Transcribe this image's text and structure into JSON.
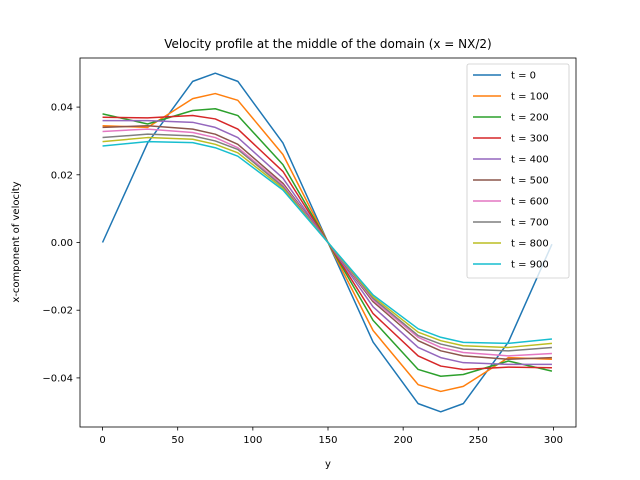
{
  "chart_data": {
    "type": "line",
    "title": "Velocity profile at the middle of the domain (x = NX/2)",
    "xlabel": "y",
    "ylabel": "x-component of velocity",
    "xlim": [
      -15,
      315
    ],
    "ylim": [
      -0.0545,
      0.0545
    ],
    "xticks": [
      0,
      50,
      100,
      150,
      200,
      250,
      300
    ],
    "xtick_labels": [
      "0",
      "50",
      "100",
      "150",
      "200",
      "250",
      "300"
    ],
    "yticks": [
      -0.04,
      -0.02,
      0.0,
      0.02,
      0.04
    ],
    "ytick_labels": [
      "−0.04",
      "−0.02",
      "0.00",
      "0.02",
      "0.04"
    ],
    "grid": false,
    "legend_position": "top-right",
    "x": [
      0,
      30,
      60,
      75,
      90,
      120,
      150,
      180,
      210,
      225,
      240,
      270,
      299
    ],
    "series": [
      {
        "name": "t = 0",
        "color": "#1f77b4",
        "values": [
          0.0,
          0.0294,
          0.0476,
          0.05,
          0.0476,
          0.0294,
          0.0,
          -0.0294,
          -0.0476,
          -0.05,
          -0.0476,
          -0.0294,
          -0.0005
        ]
      },
      {
        "name": "t = 100",
        "color": "#ff7f0e",
        "values": [
          0.0345,
          0.034,
          0.0425,
          0.044,
          0.042,
          0.026,
          0.0,
          -0.026,
          -0.042,
          -0.044,
          -0.0425,
          -0.034,
          -0.0345
        ]
      },
      {
        "name": "t = 200",
        "color": "#2ca02c",
        "values": [
          0.038,
          0.035,
          0.039,
          0.0395,
          0.0375,
          0.023,
          0.0,
          -0.023,
          -0.0375,
          -0.0395,
          -0.039,
          -0.035,
          -0.038
        ]
      },
      {
        "name": "t = 300",
        "color": "#d62728",
        "values": [
          0.037,
          0.0368,
          0.0375,
          0.0365,
          0.0335,
          0.021,
          0.0,
          -0.021,
          -0.0335,
          -0.0365,
          -0.0375,
          -0.0368,
          -0.037
        ]
      },
      {
        "name": "t = 400",
        "color": "#9467bd",
        "values": [
          0.036,
          0.036,
          0.0355,
          0.034,
          0.031,
          0.019,
          0.0,
          -0.019,
          -0.031,
          -0.034,
          -0.0355,
          -0.036,
          -0.036
        ]
      },
      {
        "name": "t = 500",
        "color": "#8c564b",
        "values": [
          0.034,
          0.0345,
          0.0335,
          0.032,
          0.029,
          0.0175,
          0.0,
          -0.0175,
          -0.029,
          -0.032,
          -0.0335,
          -0.0345,
          -0.034
        ]
      },
      {
        "name": "t = 600",
        "color": "#e377c2",
        "values": [
          0.0328,
          0.0335,
          0.0325,
          0.031,
          0.028,
          0.017,
          0.0,
          -0.017,
          -0.028,
          -0.031,
          -0.0325,
          -0.0335,
          -0.0328
        ]
      },
      {
        "name": "t = 700",
        "color": "#7f7f7f",
        "values": [
          0.031,
          0.032,
          0.0315,
          0.03,
          0.0275,
          0.0165,
          0.0,
          -0.0165,
          -0.0275,
          -0.03,
          -0.0315,
          -0.032,
          -0.031
        ]
      },
      {
        "name": "t = 800",
        "color": "#bcbd22",
        "values": [
          0.0298,
          0.031,
          0.0305,
          0.029,
          0.0265,
          0.016,
          0.0,
          -0.016,
          -0.0265,
          -0.029,
          -0.0305,
          -0.031,
          -0.0298
        ]
      },
      {
        "name": "t = 900",
        "color": "#17becf",
        "values": [
          0.0285,
          0.0298,
          0.0295,
          0.028,
          0.0255,
          0.0155,
          0.0,
          -0.0155,
          -0.0255,
          -0.028,
          -0.0295,
          -0.0298,
          -0.0285
        ]
      }
    ]
  }
}
